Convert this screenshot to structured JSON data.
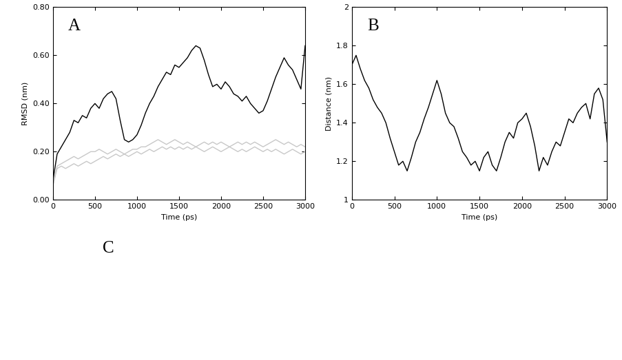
{
  "chart_data": [
    {
      "type": "line",
      "title": "A",
      "x_label": "Time (ps)",
      "y_label": "RMSD (nm)",
      "x": [
        0,
        50,
        100,
        150,
        200,
        250,
        300,
        350,
        400,
        450,
        500,
        550,
        600,
        650,
        700,
        750,
        800,
        850,
        900,
        950,
        1000,
        1050,
        1100,
        1150,
        1200,
        1250,
        1300,
        1350,
        1400,
        1450,
        1500,
        1550,
        1600,
        1650,
        1700,
        1750,
        1800,
        1850,
        1900,
        1950,
        2000,
        2050,
        2100,
        2150,
        2200,
        2250,
        2300,
        2350,
        2400,
        2450,
        2500,
        2550,
        2600,
        2650,
        2700,
        2750,
        2800,
        2850,
        2900,
        2950,
        3000
      ],
      "series": [
        {
          "color": "#c8c8c8",
          "values": [
            0.06,
            0.14,
            0.15,
            0.16,
            0.17,
            0.18,
            0.17,
            0.18,
            0.19,
            0.2,
            0.2,
            0.21,
            0.2,
            0.19,
            0.2,
            0.21,
            0.2,
            0.19,
            0.2,
            0.21,
            0.21,
            0.22,
            0.22,
            0.23,
            0.24,
            0.25,
            0.24,
            0.23,
            0.24,
            0.25,
            0.24,
            0.23,
            0.24,
            0.23,
            0.22,
            0.23,
            0.24,
            0.23,
            0.24,
            0.23,
            0.24,
            0.23,
            0.22,
            0.23,
            0.24,
            0.23,
            0.24,
            0.23,
            0.24,
            0.23,
            0.22,
            0.23,
            0.24,
            0.25,
            0.24,
            0.23,
            0.24,
            0.23,
            0.22,
            0.23,
            0.22
          ]
        },
        {
          "color": "#c8c8c8",
          "values": [
            0.06,
            0.13,
            0.14,
            0.13,
            0.14,
            0.15,
            0.14,
            0.15,
            0.16,
            0.15,
            0.16,
            0.17,
            0.18,
            0.17,
            0.18,
            0.19,
            0.18,
            0.19,
            0.18,
            0.19,
            0.2,
            0.19,
            0.2,
            0.21,
            0.2,
            0.21,
            0.22,
            0.21,
            0.22,
            0.21,
            0.22,
            0.21,
            0.22,
            0.21,
            0.22,
            0.21,
            0.2,
            0.21,
            0.22,
            0.21,
            0.2,
            0.21,
            0.22,
            0.21,
            0.2,
            0.21,
            0.2,
            0.21,
            0.22,
            0.21,
            0.2,
            0.21,
            0.2,
            0.21,
            0.2,
            0.19,
            0.2,
            0.21,
            0.2,
            0.19,
            0.2
          ]
        },
        {
          "color": "#000000",
          "values": [
            0.08,
            0.19,
            0.22,
            0.25,
            0.28,
            0.33,
            0.32,
            0.35,
            0.34,
            0.38,
            0.4,
            0.38,
            0.42,
            0.44,
            0.45,
            0.42,
            0.33,
            0.25,
            0.24,
            0.25,
            0.27,
            0.31,
            0.36,
            0.4,
            0.43,
            0.47,
            0.5,
            0.53,
            0.52,
            0.56,
            0.55,
            0.57,
            0.59,
            0.62,
            0.64,
            0.63,
            0.58,
            0.52,
            0.47,
            0.48,
            0.46,
            0.49,
            0.47,
            0.44,
            0.43,
            0.41,
            0.43,
            0.4,
            0.38,
            0.36,
            0.37,
            0.41,
            0.46,
            0.51,
            0.55,
            0.59,
            0.56,
            0.54,
            0.5,
            0.46,
            0.64
          ]
        }
      ],
      "xlim": [
        0,
        3000
      ],
      "xticks": [
        0,
        500,
        1000,
        1500,
        2000,
        2500,
        3000
      ],
      "ylim": [
        0,
        0.8
      ],
      "yticks": [
        {
          "value": 0,
          "label": "0.00"
        },
        {
          "value": 0.2,
          "label": "0.20"
        },
        {
          "value": 0.4,
          "label": "0.40"
        },
        {
          "value": 0.6,
          "label": "0.60"
        },
        {
          "value": 0.8,
          "label": "0.80"
        }
      ]
    },
    {
      "type": "line",
      "title": "B",
      "x_label": "Time (ps)",
      "y_label": "Distance (nm)",
      "x": [
        0,
        50,
        100,
        150,
        200,
        250,
        300,
        350,
        400,
        450,
        500,
        550,
        600,
        650,
        700,
        750,
        800,
        850,
        900,
        950,
        1000,
        1050,
        1100,
        1150,
        1200,
        1250,
        1300,
        1350,
        1400,
        1450,
        1500,
        1550,
        1600,
        1650,
        1700,
        1750,
        1800,
        1850,
        1900,
        1950,
        2000,
        2050,
        2100,
        2150,
        2200,
        2250,
        2300,
        2350,
        2400,
        2450,
        2500,
        2550,
        2600,
        2650,
        2700,
        2750,
        2800,
        2850,
        2900,
        2950,
        3000
      ],
      "series": [
        {
          "color": "#000000",
          "values": [
            1.7,
            1.75,
            1.68,
            1.62,
            1.58,
            1.52,
            1.48,
            1.45,
            1.4,
            1.32,
            1.25,
            1.18,
            1.2,
            1.15,
            1.22,
            1.3,
            1.35,
            1.42,
            1.48,
            1.55,
            1.62,
            1.55,
            1.45,
            1.4,
            1.38,
            1.32,
            1.25,
            1.22,
            1.18,
            1.2,
            1.15,
            1.22,
            1.25,
            1.18,
            1.15,
            1.22,
            1.3,
            1.35,
            1.32,
            1.4,
            1.42,
            1.45,
            1.38,
            1.28,
            1.15,
            1.22,
            1.18,
            1.25,
            1.3,
            1.28,
            1.35,
            1.42,
            1.4,
            1.45,
            1.48,
            1.5,
            1.42,
            1.55,
            1.58,
            1.52,
            1.3
          ]
        }
      ],
      "xlim": [
        0,
        3000
      ],
      "xticks": [
        0,
        500,
        1000,
        1500,
        2000,
        2500,
        3000
      ],
      "ylim": [
        1,
        2
      ],
      "yticks": [
        1,
        1.2,
        1.4,
        1.6,
        1.8,
        2
      ]
    }
  ],
  "panel_c": {
    "label": "C"
  }
}
